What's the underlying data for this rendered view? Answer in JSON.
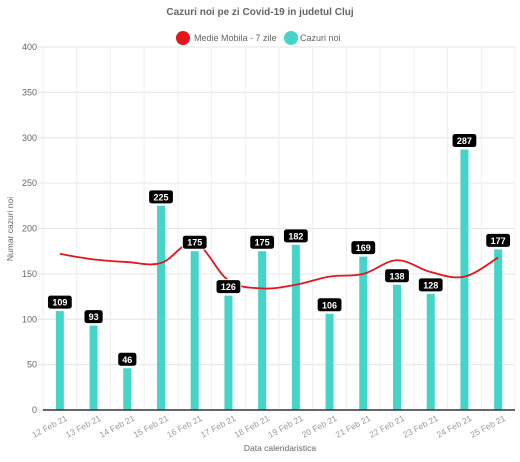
{
  "chart_data": {
    "type": "bar",
    "title": "Cazuri noi pe zi Covid-19 in judetul Cluj",
    "xlabel": "Data calendaristica",
    "ylabel": "Numar cazuri noi",
    "ylim": [
      0,
      400
    ],
    "yticks": [
      0,
      50,
      100,
      150,
      200,
      250,
      300,
      350,
      400
    ],
    "grid": true,
    "legend_position": "top",
    "categories": [
      "12 Feb 21",
      "13 Feb 21",
      "14 Feb 21",
      "15 Feb 21",
      "16 Feb 21",
      "17 Feb 21",
      "18 Feb 21",
      "19 Feb 21",
      "20 Feb 21",
      "21 Feb 21",
      "22 Feb 21",
      "23 Feb 21",
      "24 Feb 21",
      "25 Feb 21"
    ],
    "series": [
      {
        "name": "Medie Mobila - 7 zile",
        "type": "line",
        "color": "#e8141b",
        "values": [
          172,
          166,
          163,
          162,
          184,
          143,
          134,
          138,
          147,
          150,
          165,
          152,
          147,
          168
        ]
      },
      {
        "name": "Cazuri noi",
        "type": "bar",
        "color": "#45d4c8",
        "values": [
          109,
          93,
          46,
          225,
          175,
          126,
          175,
          182,
          106,
          169,
          138,
          128,
          287,
          177
        ]
      }
    ]
  }
}
